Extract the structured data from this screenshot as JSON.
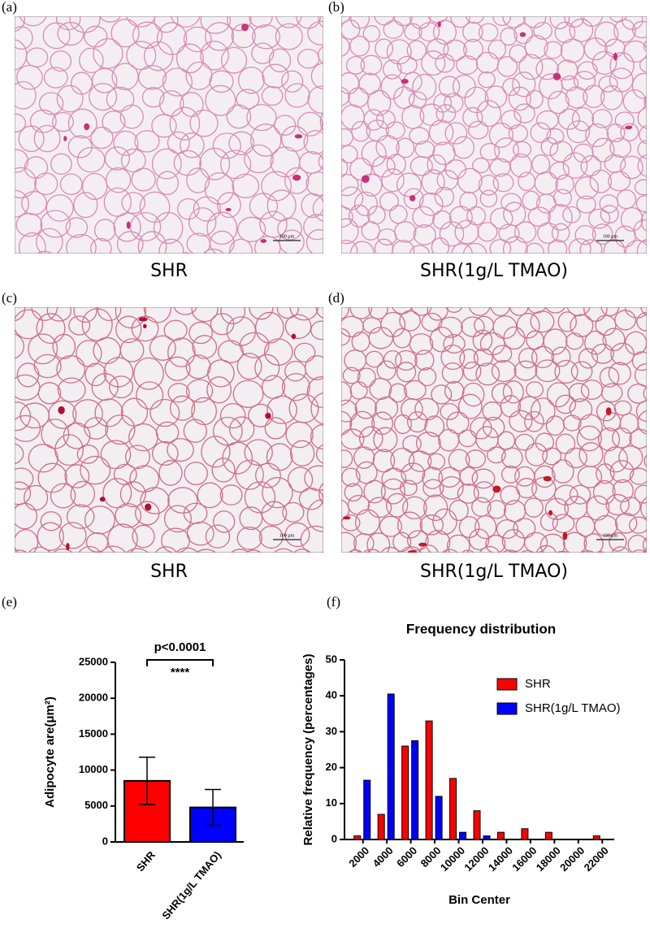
{
  "panels": [
    {
      "label": "(a)",
      "caption": "SHR",
      "scale_bar": "100 μm"
    },
    {
      "label": "(b)",
      "caption": "SHR(1g/L TMAO)",
      "scale_bar": "100 μm"
    },
    {
      "label": "(c)",
      "caption": "SHR",
      "scale_bar": "100 μm"
    },
    {
      "label": "(d)",
      "caption": "SHR(1g/L TMAO)",
      "scale_bar": "100 μm"
    }
  ],
  "chart_data": [
    {
      "type": "bar",
      "label": "(e)",
      "y_label": "Adipocyte are(μm²)",
      "categories": [
        "SHR",
        "SHR(1g/L TMAO)"
      ],
      "values": [
        8500,
        4800
      ],
      "errors": [
        3300,
        2500
      ],
      "colors": [
        "#ff0000",
        "#0000ff"
      ],
      "ylim": [
        0,
        25000
      ],
      "yticks": [
        0,
        5000,
        10000,
        15000,
        20000,
        25000
      ],
      "annotations": [
        "p<0.0001",
        "****"
      ]
    },
    {
      "type": "grouped-bar",
      "label": "(f)",
      "title": "Frequency distribution",
      "x_label": "Bin Center",
      "y_label": "Relative frequency (percentages)",
      "categories": [
        "2000",
        "4000",
        "6000",
        "8000",
        "10000",
        "12000",
        "14000",
        "16000",
        "18000",
        "20000",
        "22000"
      ],
      "series": [
        {
          "name": "SHR",
          "color": "#ff0000",
          "values": [
            1,
            7,
            26,
            33,
            17,
            8,
            2,
            3,
            2,
            0,
            1
          ]
        },
        {
          "name": "SHR(1g/L TMAO)",
          "color": "#0000ff",
          "values": [
            16.5,
            40.5,
            27.5,
            12,
            2,
            1,
            0,
            0,
            0,
            0,
            0
          ]
        }
      ],
      "ylim": [
        0,
        50
      ],
      "yticks": [
        0,
        10,
        20,
        30,
        40,
        50
      ],
      "legend": "upper right"
    }
  ]
}
